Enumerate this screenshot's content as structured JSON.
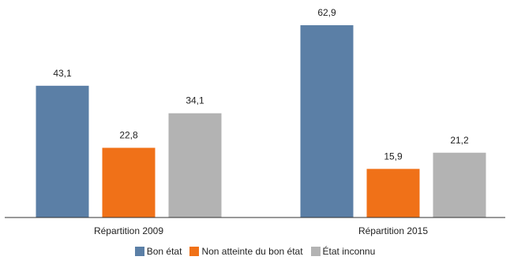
{
  "chart_data": {
    "type": "bar",
    "categories": [
      "Répartition 2009",
      "Répartition 2015"
    ],
    "series": [
      {
        "name": "Bon état",
        "color": "#5b7fa6",
        "values": [
          43.1,
          62.9
        ],
        "labels": [
          "43,1",
          "62,9"
        ]
      },
      {
        "name": "Non atteinte du bon état",
        "color": "#f07118",
        "values": [
          22.8,
          15.9
        ],
        "labels": [
          "22,8",
          "15,9"
        ]
      },
      {
        "name": "État inconnu",
        "color": "#b3b3b3",
        "values": [
          34.1,
          21.2
        ],
        "labels": [
          "34,1",
          "21,2"
        ]
      }
    ],
    "title": "",
    "xlabel": "",
    "ylabel": "",
    "ylim": [
      0,
      70
    ],
    "grid": false,
    "legend": "bottom"
  }
}
